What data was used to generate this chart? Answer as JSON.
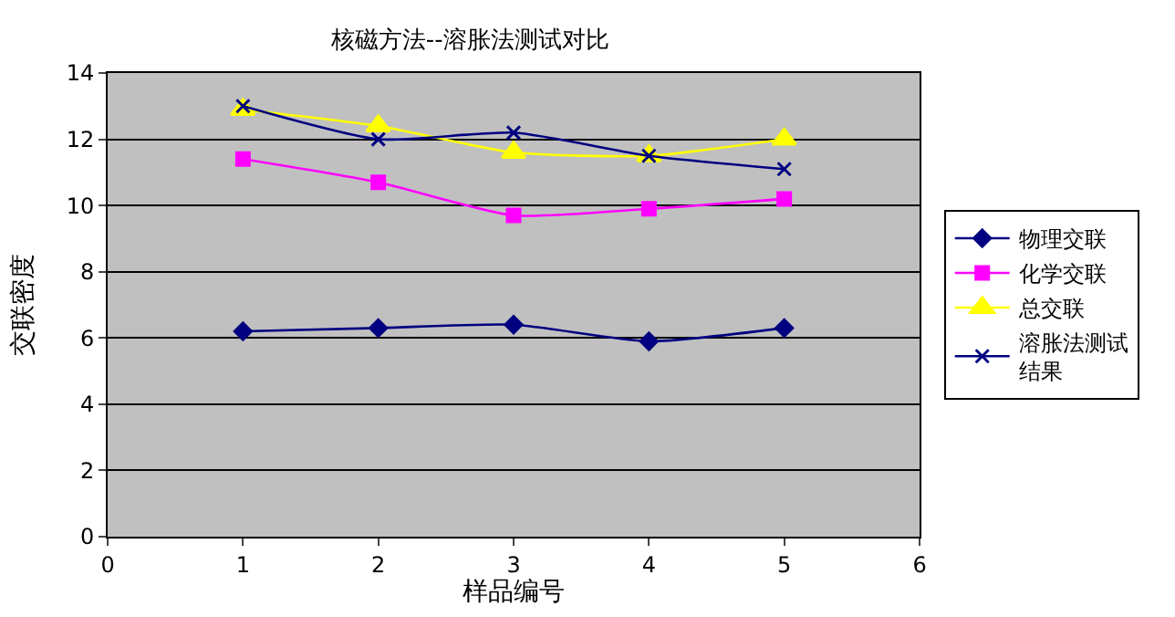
{
  "chart_data": {
    "type": "line",
    "title": "核磁方法--溶胀法测试对比",
    "xlabel": "样品编号",
    "ylabel": "交联密度",
    "x": [
      1,
      2,
      3,
      4,
      5
    ],
    "xlim": [
      0,
      6
    ],
    "xticks": [
      0,
      1,
      2,
      3,
      4,
      5,
      6
    ],
    "ylim": [
      0,
      14
    ],
    "yticks": [
      0,
      2,
      4,
      6,
      8,
      10,
      12,
      14
    ],
    "grid": "y",
    "legend": "right",
    "series": [
      {
        "name": "物理交联",
        "color": "#000080",
        "marker": "diamond",
        "values": [
          6.2,
          6.3,
          6.4,
          5.9,
          6.3
        ]
      },
      {
        "name": "化学交联",
        "color": "#ff00ff",
        "marker": "square",
        "values": [
          11.4,
          10.7,
          9.7,
          9.9,
          10.2
        ]
      },
      {
        "name": "总交联",
        "color": "#ffff00",
        "marker": "triangle",
        "values": [
          12.9,
          12.4,
          11.6,
          11.5,
          12.0
        ]
      },
      {
        "name": "溶胀法测试结果",
        "color": "#000080",
        "marker": "cross",
        "values": [
          13.0,
          12.0,
          12.2,
          11.5,
          11.1
        ]
      }
    ]
  }
}
